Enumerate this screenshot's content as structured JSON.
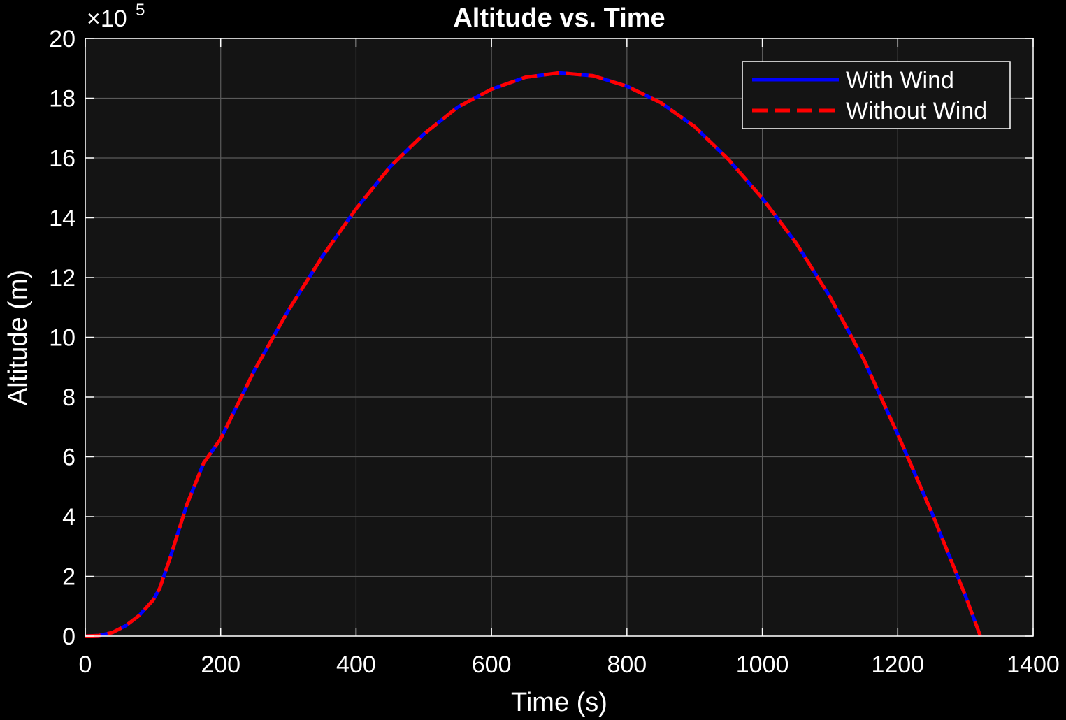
{
  "chart_data": {
    "type": "line",
    "title": "Altitude vs. Time",
    "xlabel": "Time (s)",
    "ylabel": "Altitude (m)",
    "y_exponent_base": "×10",
    "y_exponent_power": "5",
    "xlim": [
      0,
      1400
    ],
    "ylim": [
      0,
      20
    ],
    "xticks": [
      0,
      200,
      400,
      600,
      800,
      1000,
      1200,
      1400
    ],
    "yticks": [
      0,
      2,
      4,
      6,
      8,
      10,
      12,
      14,
      16,
      18,
      20
    ],
    "grid": true,
    "legend_position": "top-right",
    "x": [
      0,
      20,
      40,
      60,
      80,
      100,
      110,
      125,
      150,
      175,
      200,
      250,
      300,
      350,
      400,
      450,
      500,
      550,
      600,
      650,
      700,
      750,
      800,
      850,
      900,
      950,
      1000,
      1050,
      1100,
      1150,
      1200,
      1250,
      1300,
      1322
    ],
    "series": [
      {
        "name": "With Wind",
        "color": "#0000ff",
        "style": "solid",
        "values": [
          0,
          0.02,
          0.12,
          0.35,
          0.7,
          1.2,
          1.6,
          2.6,
          4.4,
          5.8,
          6.6,
          8.9,
          10.9,
          12.7,
          14.3,
          15.7,
          16.8,
          17.7,
          18.3,
          18.7,
          18.85,
          18.75,
          18.4,
          17.85,
          17.05,
          15.95,
          14.65,
          13.15,
          11.35,
          9.25,
          6.75,
          4.15,
          1.35,
          0
        ]
      },
      {
        "name": "Without Wind",
        "color": "#ff0000",
        "style": "dashed",
        "values": [
          0,
          0.02,
          0.12,
          0.35,
          0.7,
          1.2,
          1.6,
          2.6,
          4.4,
          5.8,
          6.6,
          8.9,
          10.9,
          12.7,
          14.3,
          15.7,
          16.8,
          17.7,
          18.3,
          18.7,
          18.85,
          18.75,
          18.4,
          17.85,
          17.05,
          15.95,
          14.65,
          13.15,
          11.35,
          9.25,
          6.75,
          4.15,
          1.35,
          0
        ]
      }
    ],
    "colors": {
      "figure_background": "#000000",
      "axes_background": "#141414",
      "grid": "#5a5a5a",
      "axis": "#ffffff",
      "text": "#ffffff"
    }
  }
}
